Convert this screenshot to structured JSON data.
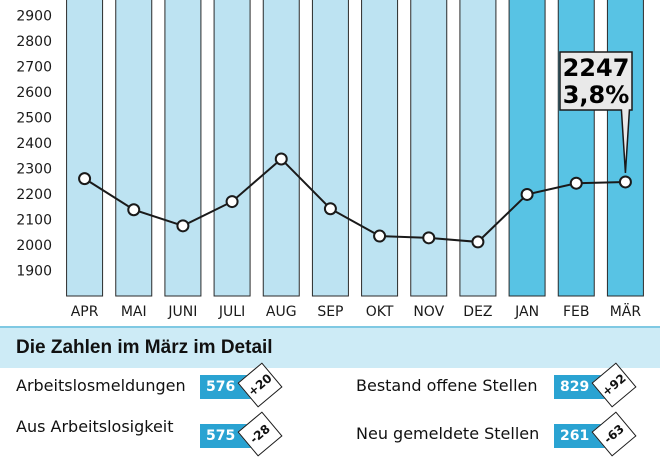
{
  "chart_data": {
    "type": "bar+line",
    "categories": [
      "APR",
      "MAI",
      "JUNI",
      "JULI",
      "AUG",
      "SEP",
      "OKT",
      "NOV",
      "DEZ",
      "JAN",
      "FEB",
      "MÄR"
    ],
    "y_ticks": [
      1900,
      2000,
      2100,
      2200,
      2300,
      2400,
      2500,
      2600,
      2700,
      2800,
      2900
    ],
    "ylim": [
      1800,
      2960
    ],
    "values": [
      2260,
      2138,
      2075,
      2170,
      2337,
      2142,
      2035,
      2028,
      2012,
      2198,
      2242,
      2247
    ],
    "callout": {
      "value": "2247",
      "percent": "3,8%"
    },
    "colors": {
      "bar_light": "#bde3f2",
      "bar_highlight": "#58c3e4",
      "bar_border": "#2a2a2a",
      "line": "#1a1a1a",
      "marker_fill": "#ffffff"
    },
    "highlight_from_index": 9
  },
  "details": {
    "title": "Die Zahlen im März im Detail",
    "left": [
      {
        "label": "Arbeitslosmeldungen",
        "value": "576",
        "delta": "+20"
      },
      {
        "label": "Aus Arbeitslosigkeit",
        "value": "575",
        "delta": "-28"
      }
    ],
    "right": [
      {
        "label": "Bestand offene Stellen",
        "value": "829",
        "delta": "+92"
      },
      {
        "label": "Neu gemeldete Stellen",
        "value": "261",
        "delta": "-63"
      }
    ]
  }
}
